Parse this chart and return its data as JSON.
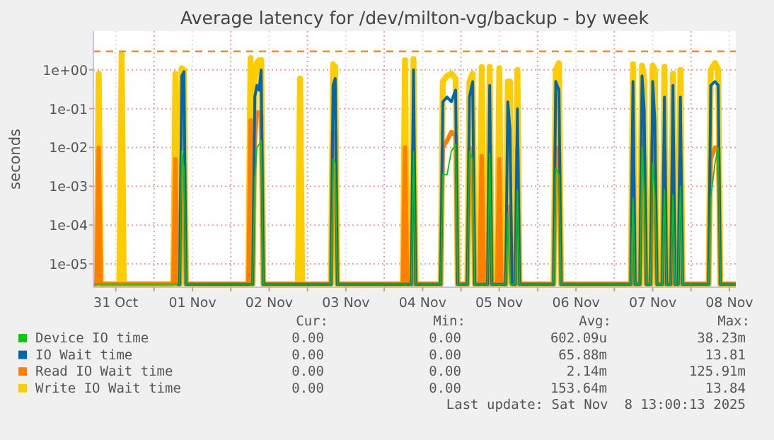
{
  "chart_data": {
    "type": "line",
    "title": "Average latency for /dev/milton-vg/backup - by week",
    "ylabel": "seconds",
    "log": "y",
    "grid": true,
    "legend": "bottom",
    "xlim": [
      "2025-10-31T05:00",
      "2025-11-08T14:00"
    ],
    "xticks": [
      {
        "value": "2025-10-31T12:00",
        "label": "31 Oct"
      },
      {
        "value": "2025-11-01T00:00",
        "label": null
      },
      {
        "value": "2025-11-01T12:00",
        "label": "01 Nov"
      },
      {
        "value": "2025-11-02T00:00",
        "label": null
      },
      {
        "value": "2025-11-02T12:00",
        "label": "02 Nov"
      },
      {
        "value": "2025-11-03T00:00",
        "label": null
      },
      {
        "value": "2025-11-03T12:00",
        "label": "03 Nov"
      },
      {
        "value": "2025-11-04T00:00",
        "label": null
      },
      {
        "value": "2025-11-04T12:00",
        "label": "04 Nov"
      },
      {
        "value": "2025-11-05T00:00",
        "label": null
      },
      {
        "value": "2025-11-05T12:00",
        "label": "05 Nov"
      },
      {
        "value": "2025-11-06T00:00",
        "label": null
      },
      {
        "value": "2025-11-06T12:00",
        "label": "06 Nov"
      },
      {
        "value": "2025-11-07T00:00",
        "label": null
      },
      {
        "value": "2025-11-07T12:00",
        "label": "07 Nov"
      },
      {
        "value": "2025-11-08T00:00",
        "label": null
      },
      {
        "value": "2025-11-08T12:00",
        "label": "08 Nov"
      }
    ],
    "ylim": [
      2.5e-06,
      10
    ],
    "yticks": [
      {
        "value": 1e-05,
        "label": "1e-05"
      },
      {
        "value": 0.0001,
        "label": "1e-04"
      },
      {
        "value": 0.001,
        "label": "1e-03"
      },
      {
        "value": 0.01,
        "label": "1e-02"
      },
      {
        "value": 0.1,
        "label": "1e-01"
      },
      {
        "value": 1,
        "label": "1e+00"
      }
    ],
    "ref_lines": [
      {
        "axis": "y",
        "value": 3,
        "color": "#ff7f00",
        "line_style": "dashed"
      }
    ],
    "x": [
      "2025-10-31T05:00",
      "2025-10-31T06:00",
      "2025-10-31T06:40",
      "2025-10-31T07:20",
      "2025-10-31T13:10",
      "2025-10-31T13:50",
      "2025-10-31T14:30",
      "2025-11-01T06:00",
      "2025-11-01T06:40",
      "2025-11-01T07:20",
      "2025-11-01T08:00",
      "2025-11-01T08:40",
      "2025-11-01T09:20",
      "2025-11-01T10:00",
      "2025-11-02T05:30",
      "2025-11-02T06:10",
      "2025-11-02T06:50",
      "2025-11-02T07:30",
      "2025-11-02T08:10",
      "2025-11-02T08:50",
      "2025-11-02T09:30",
      "2025-11-02T10:10",
      "2025-11-02T21:00",
      "2025-11-02T21:40",
      "2025-11-02T22:20",
      "2025-11-03T07:20",
      "2025-11-03T08:00",
      "2025-11-03T08:40",
      "2025-11-03T09:20",
      "2025-11-04T05:50",
      "2025-11-04T06:30",
      "2025-11-04T07:10",
      "2025-11-04T08:30",
      "2025-11-04T09:10",
      "2025-11-04T09:50",
      "2025-11-04T17:40",
      "2025-11-04T18:20",
      "2025-11-04T19:40",
      "2025-11-04T21:00",
      "2025-11-04T22:20",
      "2025-11-04T23:00",
      "2025-11-05T02:00",
      "2025-11-05T02:40",
      "2025-11-05T03:40",
      "2025-11-05T04:20",
      "2025-11-05T05:50",
      "2025-11-05T06:30",
      "2025-11-05T07:10",
      "2025-11-05T08:20",
      "2025-11-05T09:00",
      "2025-11-05T09:40",
      "2025-11-05T11:20",
      "2025-11-05T12:00",
      "2025-11-05T12:40",
      "2025-11-05T14:00",
      "2025-11-05T14:40",
      "2025-11-05T15:20",
      "2025-11-05T16:00",
      "2025-11-05T17:00",
      "2025-11-05T17:40",
      "2025-11-05T18:20",
      "2025-11-06T05:00",
      "2025-11-06T05:40",
      "2025-11-06T06:40",
      "2025-11-06T07:20",
      "2025-11-07T05:10",
      "2025-11-07T05:50",
      "2025-11-07T06:30",
      "2025-11-07T08:00",
      "2025-11-07T08:40",
      "2025-11-07T09:20",
      "2025-11-07T10:00",
      "2025-11-07T11:20",
      "2025-11-07T12:00",
      "2025-11-07T12:40",
      "2025-11-07T13:20",
      "2025-11-07T15:00",
      "2025-11-07T15:40",
      "2025-11-07T16:20",
      "2025-11-07T17:40",
      "2025-11-07T18:20",
      "2025-11-07T19:00",
      "2025-11-07T20:00",
      "2025-11-07T20:40",
      "2025-11-07T21:20",
      "2025-11-08T05:30",
      "2025-11-08T06:10",
      "2025-11-08T07:30",
      "2025-11-08T08:30",
      "2025-11-08T09:10",
      "2025-11-08T14:00"
    ],
    "series": [
      {
        "name": "Write IO Wait time",
        "color": "#ffcc00",
        "values": [
          3e-06,
          3e-06,
          0.8,
          3e-06,
          3e-06,
          2.5,
          3e-06,
          3e-06,
          0.8,
          3e-06,
          3e-06,
          1.1,
          1.0,
          3e-06,
          3e-06,
          2.0,
          3e-06,
          0.6,
          1.5,
          1.8,
          1.8,
          3e-06,
          3e-06,
          0.6,
          3e-06,
          3e-06,
          1.4,
          1.2,
          3e-06,
          3e-06,
          1.8,
          3e-06,
          3e-06,
          1.9,
          3e-06,
          3e-06,
          0.5,
          0.7,
          0.8,
          0.6,
          3e-06,
          3e-06,
          0.5,
          0.8,
          3e-06,
          3e-06,
          1.2,
          3e-06,
          3e-06,
          1.2,
          3e-06,
          3e-06,
          1.1,
          3e-06,
          3e-06,
          0.5,
          0.5,
          3e-06,
          3e-06,
          1.0,
          3e-06,
          3e-06,
          1.0,
          1.5,
          3e-06,
          3e-06,
          1.4,
          3e-06,
          3e-06,
          1.3,
          0.6,
          3e-06,
          3e-06,
          1.3,
          1.0,
          3e-06,
          3e-06,
          1.2,
          3e-06,
          3e-06,
          0.8,
          3e-06,
          3e-06,
          1.0,
          3e-06,
          3e-06,
          1.0,
          1.5,
          1.0,
          3e-06,
          3e-06
        ]
      },
      {
        "name": "Read IO Wait time",
        "color": "#ff8000",
        "values": [
          3e-06,
          3e-06,
          0.01,
          3e-06,
          3e-06,
          3e-06,
          3e-06,
          3e-06,
          0.005,
          3e-06,
          3e-06,
          0.006,
          0.004,
          3e-06,
          3e-06,
          0.05,
          3e-06,
          0.015,
          0.08,
          0.08,
          0.07,
          3e-06,
          3e-06,
          3e-06,
          3e-06,
          3e-06,
          0.025,
          0.02,
          3e-06,
          3e-06,
          0.01,
          3e-06,
          3e-06,
          0.01,
          3e-06,
          3e-06,
          0.01,
          0.015,
          0.025,
          0.02,
          3e-06,
          3e-06,
          0.01,
          0.008,
          3e-06,
          3e-06,
          0.006,
          3e-06,
          3e-06,
          0.01,
          3e-06,
          3e-06,
          0.005,
          3e-06,
          3e-06,
          0.0002,
          0.0003,
          3e-06,
          3e-06,
          0.01,
          3e-06,
          3e-06,
          0.01,
          0.009,
          3e-06,
          3e-06,
          0.01,
          3e-06,
          3e-06,
          0.015,
          0.005,
          3e-06,
          3e-06,
          0.015,
          0.003,
          3e-06,
          3e-06,
          0.01,
          3e-06,
          3e-06,
          0.01,
          3e-06,
          3e-06,
          0.005,
          3e-06,
          3e-06,
          0.005,
          0.01,
          0.01,
          3e-06,
          3e-06
        ]
      },
      {
        "name": "IO Wait time",
        "color": "#0066b3",
        "values": [
          null,
          null,
          null,
          null,
          null,
          null,
          null,
          null,
          null,
          3e-06,
          3e-06,
          0.7,
          0.9,
          3e-06,
          3e-06,
          3e-06,
          3e-06,
          0.2,
          0.4,
          0.3,
          1.0,
          3e-06,
          3e-06,
          3e-06,
          3e-06,
          3e-06,
          0.4,
          0.6,
          3e-06,
          3e-06,
          3e-06,
          3e-06,
          3e-06,
          1.0,
          3e-06,
          3e-06,
          0.15,
          0.2,
          0.15,
          0.3,
          3e-06,
          3e-06,
          0.2,
          0.5,
          3e-06,
          3e-06,
          3e-06,
          3e-06,
          3e-06,
          0.4,
          3e-06,
          3e-06,
          3e-06,
          3e-06,
          3e-06,
          0.15,
          0.03,
          3e-06,
          3e-06,
          0.1,
          3e-06,
          3e-06,
          0.5,
          0.3,
          3e-06,
          3e-06,
          0.5,
          3e-06,
          3e-06,
          0.7,
          0.1,
          3e-06,
          3e-06,
          0.5,
          0.05,
          3e-06,
          3e-06,
          0.2,
          3e-06,
          3e-06,
          0.4,
          3e-06,
          3e-06,
          0.2,
          3e-06,
          3e-06,
          0.4,
          0.5,
          0.4,
          3e-06,
          3e-06
        ]
      },
      {
        "name": "Device IO time",
        "color": "#00cc00",
        "values": [
          3e-06,
          3e-06,
          3e-06,
          3e-06,
          3e-06,
          3e-06,
          3e-06,
          3e-06,
          3e-06,
          3e-06,
          3e-06,
          0.008,
          0.003,
          3e-06,
          3e-06,
          3e-06,
          3e-06,
          0.0015,
          0.01,
          0.012,
          0.015,
          3e-06,
          3e-06,
          3e-06,
          3e-06,
          3e-06,
          0.005,
          0.004,
          3e-06,
          3e-06,
          3e-06,
          3e-06,
          3e-06,
          0.008,
          3e-06,
          3e-06,
          0.002,
          0.002,
          0.008,
          0.012,
          3e-06,
          3e-06,
          0.008,
          0.005,
          3e-06,
          3e-06,
          3e-06,
          3e-06,
          3e-06,
          0.007,
          3e-06,
          3e-06,
          3e-06,
          3e-06,
          3e-06,
          0.0002,
          3e-06,
          3e-06,
          3e-06,
          0.0008,
          3e-06,
          3e-06,
          0.003,
          0.002,
          3e-06,
          3e-06,
          0.0005,
          3e-06,
          3e-06,
          0.01,
          0.0008,
          3e-06,
          3e-06,
          0.004,
          0.0006,
          3e-06,
          3e-06,
          0.0008,
          3e-06,
          3e-06,
          0.0006,
          3e-06,
          3e-06,
          0.001,
          3e-06,
          3e-06,
          0.0005,
          0.004,
          0.01,
          3e-06,
          3e-06
        ]
      }
    ],
    "annotations": [
      "Cur:",
      "Min:",
      "Avg:",
      "Max:",
      "0.00",
      "0.00",
      "602.09u",
      "38.23m",
      "0.00",
      "0.00",
      "65.88m",
      "13.81",
      "0.00",
      "0.00",
      "2.14m",
      "125.91m",
      "0.00",
      "0.00",
      "153.64m",
      "13.84",
      "Last update: Sat Nov  8 13:00:13 2025"
    ]
  }
}
